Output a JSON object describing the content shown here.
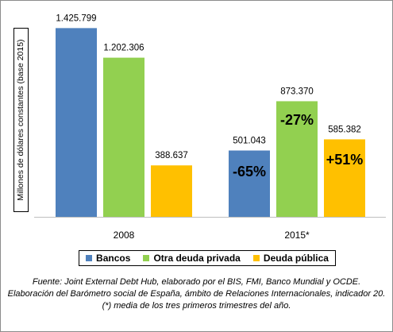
{
  "chart_data": {
    "type": "bar",
    "categories": [
      "2008",
      "2015*"
    ],
    "ylabel": "Millones de dólares constantes (base 2015)",
    "ylim": [
      0,
      1500000
    ],
    "grid": false,
    "legend_position": "bottom",
    "series": [
      {
        "name": "Bancos",
        "color": "#4f81bd",
        "values": [
          1425799,
          501043
        ],
        "labels": [
          "1.425.799",
          "501.043"
        ],
        "change": [
          "",
          "-65%"
        ]
      },
      {
        "name": "Otra deuda privada",
        "color": "#92d050",
        "values": [
          1202306,
          873370
        ],
        "labels": [
          "1.202.306",
          "873.370"
        ],
        "change": [
          "",
          "-27%"
        ]
      },
      {
        "name": "Deuda pública",
        "color": "#ffc000",
        "values": [
          388637,
          585382
        ],
        "labels": [
          "388.637",
          "585.382"
        ],
        "change": [
          "",
          "+51%"
        ]
      }
    ]
  },
  "footnote": {
    "line1": "Fuente: Joint External Debt Hub, elaborado por el BIS, FMI, Banco Mundial y OCDE.",
    "line2": "Elaboración del Barómetro social de España, ámbito de Relaciones Internacionales, indicador 20.",
    "line3": "(*) media de los tres primeros trimestres del año."
  }
}
